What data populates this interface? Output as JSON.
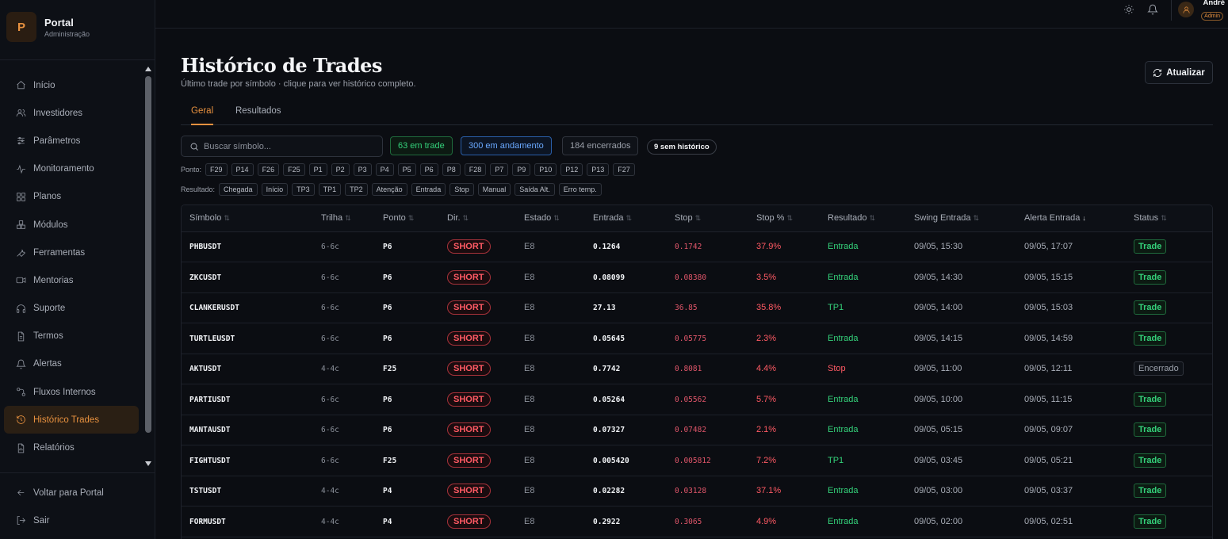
{
  "brand": {
    "logo": "P",
    "title": "Portal",
    "subtitle": "Administração"
  },
  "sidebar": {
    "items": [
      {
        "label": "Início",
        "icon": "home-icon"
      },
      {
        "label": "Investidores",
        "icon": "users-icon"
      },
      {
        "label": "Parâmetros",
        "icon": "sliders-icon"
      },
      {
        "label": "Monitoramento",
        "icon": "activity-icon"
      },
      {
        "label": "Planos",
        "icon": "grid-icon"
      },
      {
        "label": "Módulos",
        "icon": "boxes-icon"
      },
      {
        "label": "Ferramentas",
        "icon": "wrench-icon"
      },
      {
        "label": "Mentorias",
        "icon": "video-icon"
      },
      {
        "label": "Suporte",
        "icon": "headphones-icon"
      },
      {
        "label": "Termos",
        "icon": "file-icon"
      },
      {
        "label": "Alertas",
        "icon": "bell-icon"
      },
      {
        "label": "Fluxos Internos",
        "icon": "flow-icon"
      },
      {
        "label": "Histórico Trades",
        "icon": "history-icon"
      },
      {
        "label": "Relatórios",
        "icon": "report-icon"
      }
    ],
    "active_index": 12,
    "bottom": [
      {
        "label": "Voltar para Portal",
        "icon": "arrow-left-icon"
      },
      {
        "label": "Sair",
        "icon": "logout-icon"
      }
    ]
  },
  "topbar": {
    "user_name": "André",
    "user_role": "Admin"
  },
  "header": {
    "title": "Histórico de Trades",
    "subtitle": "Último trade por símbolo · clique para ver histórico completo.",
    "refresh_label": "Atualizar"
  },
  "tabs": [
    {
      "label": "Geral"
    },
    {
      "label": "Resultados"
    }
  ],
  "search": {
    "placeholder": "Buscar símbolo...",
    "value": ""
  },
  "counters": {
    "in_trade": "63 em trade",
    "in_progress": "300 em andamento",
    "closed": "184 encerrados",
    "no_history": "9 sem histórico"
  },
  "filters": {
    "ponto_label": "Ponto:",
    "ponto": [
      "F29",
      "P14",
      "F26",
      "F25",
      "P1",
      "P2",
      "P3",
      "P4",
      "P5",
      "P6",
      "P8",
      "F28",
      "P7",
      "P9",
      "P10",
      "P12",
      "P13",
      "F27"
    ],
    "resultado_label": "Resultado:",
    "resultado": [
      "Chegada",
      "Início",
      "TP3",
      "TP1",
      "TP2",
      "Atenção",
      "Entrada",
      "Stop",
      "Manual",
      "Saída Alt.",
      "Erro temp."
    ]
  },
  "table": {
    "columns": [
      "Símbolo",
      "Trilha",
      "Ponto",
      "Dir.",
      "Estado",
      "Entrada",
      "Stop",
      "Stop %",
      "Resultado",
      "Swing Entrada",
      "Alerta Entrada",
      "Status"
    ],
    "sorted_column": "Alerta Entrada",
    "rows": [
      {
        "symbol": "PHBUSDT",
        "trilha": "6-6c",
        "ponto": "P6",
        "dir": "SHORT",
        "estado": "E8",
        "entrada": "0.1264",
        "stop": "0.1742",
        "stop_pct": "37.9%",
        "resultado": "Entrada",
        "swing": "09/05, 15:30",
        "alerta": "09/05, 17:07",
        "status": "Trade"
      },
      {
        "symbol": "ZKCUSDT",
        "trilha": "6-6c",
        "ponto": "P6",
        "dir": "SHORT",
        "estado": "E8",
        "entrada": "0.08099",
        "stop": "0.08380",
        "stop_pct": "3.5%",
        "resultado": "Entrada",
        "swing": "09/05, 14:30",
        "alerta": "09/05, 15:15",
        "status": "Trade"
      },
      {
        "symbol": "CLANKERUSDT",
        "trilha": "6-6c",
        "ponto": "P6",
        "dir": "SHORT",
        "estado": "E8",
        "entrada": "27.13",
        "stop": "36.85",
        "stop_pct": "35.8%",
        "resultado": "TP1",
        "swing": "09/05, 14:00",
        "alerta": "09/05, 15:03",
        "status": "Trade"
      },
      {
        "symbol": "TURTLEUSDT",
        "trilha": "6-6c",
        "ponto": "P6",
        "dir": "SHORT",
        "estado": "E8",
        "entrada": "0.05645",
        "stop": "0.05775",
        "stop_pct": "2.3%",
        "resultado": "Entrada",
        "swing": "09/05, 14:15",
        "alerta": "09/05, 14:59",
        "status": "Trade"
      },
      {
        "symbol": "AKTUSDT",
        "trilha": "4-4c",
        "ponto": "F25",
        "dir": "SHORT",
        "estado": "E8",
        "entrada": "0.7742",
        "stop": "0.8081",
        "stop_pct": "4.4%",
        "resultado": "Stop",
        "swing": "09/05, 11:00",
        "alerta": "09/05, 12:11",
        "status": "Encerrado"
      },
      {
        "symbol": "PARTIUSDT",
        "trilha": "6-6c",
        "ponto": "P6",
        "dir": "SHORT",
        "estado": "E8",
        "entrada": "0.05264",
        "stop": "0.05562",
        "stop_pct": "5.7%",
        "resultado": "Entrada",
        "swing": "09/05, 10:00",
        "alerta": "09/05, 11:15",
        "status": "Trade"
      },
      {
        "symbol": "MANTAUSDT",
        "trilha": "6-6c",
        "ponto": "P6",
        "dir": "SHORT",
        "estado": "E8",
        "entrada": "0.07327",
        "stop": "0.07482",
        "stop_pct": "2.1%",
        "resultado": "Entrada",
        "swing": "09/05, 05:15",
        "alerta": "09/05, 09:07",
        "status": "Trade"
      },
      {
        "symbol": "FIGHTUSDT",
        "trilha": "6-6c",
        "ponto": "F25",
        "dir": "SHORT",
        "estado": "E8",
        "entrada": "0.005420",
        "stop": "0.005812",
        "stop_pct": "7.2%",
        "resultado": "TP1",
        "swing": "09/05, 03:45",
        "alerta": "09/05, 05:21",
        "status": "Trade"
      },
      {
        "symbol": "TSTUSDT",
        "trilha": "4-4c",
        "ponto": "P4",
        "dir": "SHORT",
        "estado": "E8",
        "entrada": "0.02282",
        "stop": "0.03128",
        "stop_pct": "37.1%",
        "resultado": "Entrada",
        "swing": "09/05, 03:00",
        "alerta": "09/05, 03:37",
        "status": "Trade"
      },
      {
        "symbol": "FORMUSDT",
        "trilha": "4-4c",
        "ponto": "P4",
        "dir": "SHORT",
        "estado": "E8",
        "entrada": "0.2922",
        "stop": "0.3065",
        "stop_pct": "4.9%",
        "resultado": "Entrada",
        "swing": "09/05, 02:00",
        "alerta": "09/05, 02:51",
        "status": "Trade"
      }
    ]
  },
  "colors": {
    "accent": "#e8913f",
    "green": "#34d17a",
    "red": "#ff5a64",
    "blue": "#6aa9ff",
    "background": "#0b0d12"
  }
}
